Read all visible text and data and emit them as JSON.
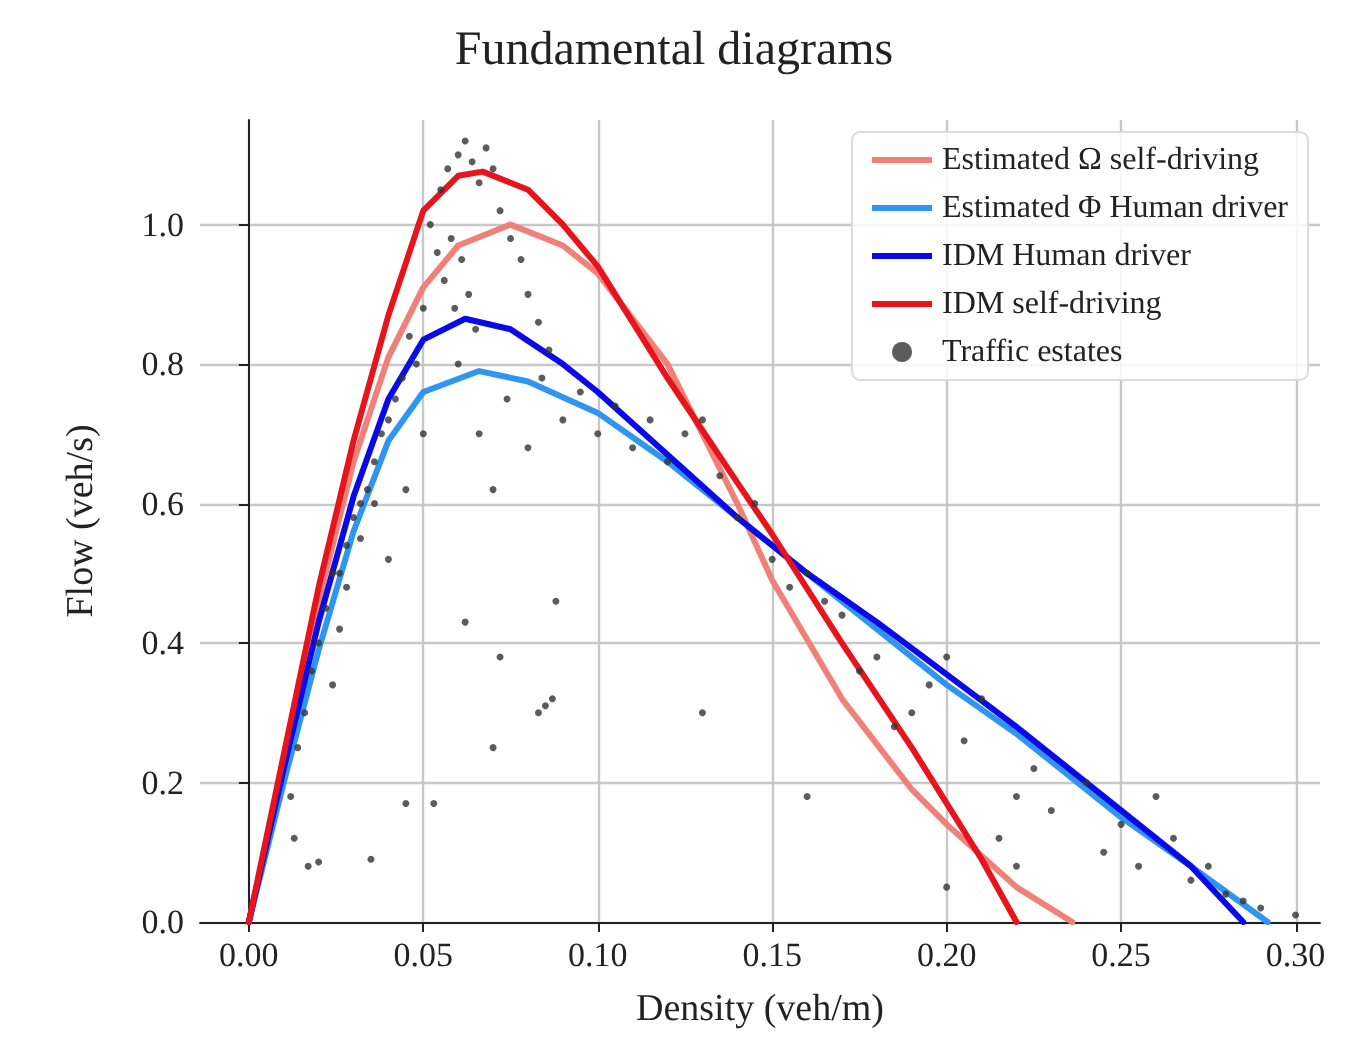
{
  "chart_data": {
    "type": "line",
    "title": "Fundamental diagrams",
    "xlabel": "Density (veh/m)",
    "ylabel": "Flow (veh/s)",
    "xlim": [
      -0.014,
      0.307
    ],
    "ylim": [
      0,
      1.15
    ],
    "xticks": [
      {
        "value": 0,
        "label": "0.00"
      },
      {
        "value": 0.05,
        "label": "0.05"
      },
      {
        "value": 0.1,
        "label": "0.10"
      },
      {
        "value": 0.15,
        "label": "0.15"
      },
      {
        "value": 0.2,
        "label": "0.20"
      },
      {
        "value": 0.25,
        "label": "0.25"
      },
      {
        "value": 0.3,
        "label": "0.30"
      }
    ],
    "yticks": [
      {
        "value": 0,
        "label": "0.0"
      },
      {
        "value": 0.2,
        "label": "0.2"
      },
      {
        "value": 0.4,
        "label": "0.4"
      },
      {
        "value": 0.6,
        "label": "0.6"
      },
      {
        "value": 0.8,
        "label": "0.8"
      },
      {
        "value": 1,
        "label": "1.0"
      }
    ],
    "grid": true,
    "legend": "top right",
    "line_style": "solid",
    "series": [
      {
        "name": "Estimated Ω self-driving",
        "marker": "none",
        "color": "#f08078",
        "x": [
          0,
          0.01,
          0.02,
          0.03,
          0.04,
          0.05,
          0.06,
          0.075,
          0.09,
          0.1,
          0.12,
          0.14,
          0.15,
          0.17,
          0.19,
          0.2,
          0.22,
          0.236
        ],
        "values": [
          0,
          0.23,
          0.46,
          0.66,
          0.81,
          0.91,
          0.97,
          1.0,
          0.97,
          0.93,
          0.8,
          0.6,
          0.49,
          0.32,
          0.19,
          0.14,
          0.05,
          0
        ]
      },
      {
        "name": "Estimated Φ Human driver",
        "marker": "none",
        "color": "#2f95f0",
        "x": [
          0,
          0.01,
          0.02,
          0.03,
          0.04,
          0.05,
          0.066,
          0.08,
          0.1,
          0.12,
          0.14,
          0.16,
          0.18,
          0.2,
          0.22,
          0.25,
          0.27,
          0.292
        ],
        "values": [
          0,
          0.2,
          0.39,
          0.56,
          0.69,
          0.76,
          0.79,
          0.775,
          0.73,
          0.66,
          0.58,
          0.5,
          0.42,
          0.34,
          0.27,
          0.15,
          0.08,
          0
        ]
      },
      {
        "name": "IDM Human driver",
        "marker": "none",
        "color": "#0a0ae8",
        "x": [
          0,
          0.01,
          0.02,
          0.03,
          0.04,
          0.05,
          0.062,
          0.075,
          0.09,
          0.1,
          0.12,
          0.14,
          0.16,
          0.18,
          0.2,
          0.22,
          0.25,
          0.27,
          0.285
        ],
        "values": [
          0,
          0.22,
          0.43,
          0.61,
          0.75,
          0.835,
          0.865,
          0.85,
          0.8,
          0.76,
          0.67,
          0.58,
          0.5,
          0.43,
          0.355,
          0.28,
          0.16,
          0.08,
          0
        ]
      },
      {
        "name": "IDM self-driving",
        "marker": "none",
        "color": "#e8141c",
        "x": [
          0,
          0.01,
          0.02,
          0.03,
          0.04,
          0.05,
          0.06,
          0.067,
          0.08,
          0.09,
          0.1,
          0.12,
          0.14,
          0.15,
          0.17,
          0.19,
          0.2,
          0.21,
          0.22
        ],
        "values": [
          0,
          0.24,
          0.48,
          0.69,
          0.87,
          1.02,
          1.07,
          1.076,
          1.05,
          1.0,
          0.94,
          0.78,
          0.63,
          0.556,
          0.4,
          0.25,
          0.17,
          0.09,
          0
        ]
      },
      {
        "name": "Traffic estates",
        "type": "scatter",
        "marker": "circle",
        "color": "#333333",
        "x": [
          0.055,
          0.057,
          0.06,
          0.062,
          0.064,
          0.066,
          0.068,
          0.07,
          0.058,
          0.061,
          0.063,
          0.065,
          0.052,
          0.054,
          0.056,
          0.059,
          0.072,
          0.075,
          0.078,
          0.08,
          0.083,
          0.086,
          0.05,
          0.048,
          0.046,
          0.044,
          0.042,
          0.04,
          0.038,
          0.036,
          0.034,
          0.032,
          0.03,
          0.028,
          0.026,
          0.024,
          0.022,
          0.02,
          0.018,
          0.016,
          0.014,
          0.012,
          0.024,
          0.026,
          0.028,
          0.032,
          0.036,
          0.04,
          0.045,
          0.05,
          0.06,
          0.066,
          0.07,
          0.074,
          0.08,
          0.084,
          0.085,
          0.087,
          0.083,
          0.09,
          0.095,
          0.1,
          0.105,
          0.11,
          0.115,
          0.12,
          0.125,
          0.13,
          0.135,
          0.14,
          0.145,
          0.15,
          0.155,
          0.16,
          0.165,
          0.17,
          0.175,
          0.18,
          0.185,
          0.19,
          0.195,
          0.2,
          0.205,
          0.21,
          0.215,
          0.22,
          0.225,
          0.23,
          0.24,
          0.245,
          0.25,
          0.255,
          0.26,
          0.265,
          0.27,
          0.275,
          0.28,
          0.285,
          0.29,
          0.3,
          0.02,
          0.013,
          0.017,
          0.035,
          0.045,
          0.053,
          0.07,
          0.062,
          0.072,
          0.088,
          0.13,
          0.16,
          0.2,
          0.22
        ],
        "values": [
          1.05,
          1.08,
          1.1,
          1.12,
          1.09,
          1.06,
          1.11,
          1.08,
          0.98,
          0.95,
          0.9,
          0.85,
          1.0,
          0.96,
          0.92,
          0.88,
          1.02,
          0.98,
          0.95,
          0.9,
          0.86,
          0.82,
          0.88,
          0.8,
          0.84,
          0.78,
          0.75,
          0.72,
          0.7,
          0.66,
          0.62,
          0.6,
          0.58,
          0.54,
          0.5,
          0.5,
          0.45,
          0.4,
          0.36,
          0.3,
          0.25,
          0.18,
          0.34,
          0.42,
          0.48,
          0.55,
          0.6,
          0.52,
          0.62,
          0.7,
          0.8,
          0.7,
          0.62,
          0.75,
          0.68,
          0.78,
          0.31,
          0.32,
          0.3,
          0.72,
          0.76,
          0.7,
          0.74,
          0.68,
          0.72,
          0.66,
          0.7,
          0.72,
          0.64,
          0.58,
          0.6,
          0.52,
          0.48,
          0.5,
          0.46,
          0.44,
          0.36,
          0.38,
          0.28,
          0.3,
          0.34,
          0.38,
          0.26,
          0.32,
          0.12,
          0.18,
          0.22,
          0.16,
          0.2,
          0.1,
          0.14,
          0.08,
          0.18,
          0.12,
          0.06,
          0.08,
          0.04,
          0.03,
          0.02,
          0.01,
          0.086,
          0.12,
          0.08,
          0.09,
          0.17,
          0.17,
          0.25,
          0.43,
          0.38,
          0.46,
          0.3,
          0.18,
          0.05,
          0.08
        ]
      }
    ]
  }
}
